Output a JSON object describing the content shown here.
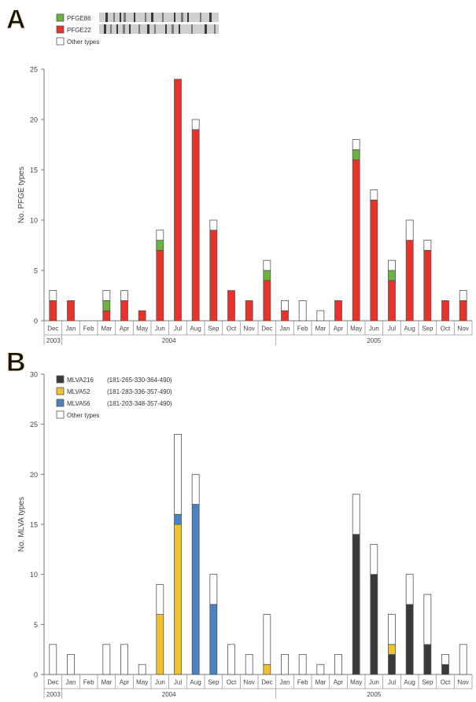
{
  "chart_data": [
    {
      "panel_label": "A",
      "type": "bar",
      "stacked": true,
      "ylabel": "No. PFGE types",
      "ylim": [
        0,
        25
      ],
      "yticks": [
        0,
        5,
        10,
        15,
        20,
        25
      ],
      "grid": false,
      "legend_position": "top-left",
      "categories": [
        "Dec",
        "Jan",
        "Feb",
        "Mar",
        "Apr",
        "May",
        "Jun",
        "Jul",
        "Aug",
        "Sep",
        "Oct",
        "Nov",
        "Dec",
        "Jan",
        "Feb",
        "Mar",
        "Apr",
        "May",
        "Jun",
        "Jul",
        "Aug",
        "Sep",
        "Oct",
        "Nov"
      ],
      "year_groups": [
        {
          "label": "2003",
          "start": 0,
          "end": 0
        },
        {
          "label": "2004",
          "start": 1,
          "end": 12
        },
        {
          "label": "2005",
          "start": 13,
          "end": 23
        }
      ],
      "series": [
        {
          "name": "PFGE22",
          "color": "#e8332a",
          "values": [
            2,
            2,
            0,
            1,
            2,
            1,
            7,
            24,
            19,
            9,
            3,
            2,
            4,
            1,
            0,
            0,
            2,
            16,
            12,
            4,
            8,
            7,
            2,
            2
          ]
        },
        {
          "name": "PFGE86",
          "color": "#6cb33f",
          "values": [
            0,
            0,
            0,
            1,
            0,
            0,
            1,
            0,
            0,
            0,
            0,
            0,
            1,
            0,
            0,
            0,
            0,
            1,
            0,
            1,
            0,
            0,
            0,
            0
          ]
        },
        {
          "name": "Other types",
          "color": "#ffffff",
          "values": [
            1,
            0,
            0,
            1,
            1,
            0,
            1,
            0,
            1,
            1,
            0,
            0,
            1,
            1,
            2,
            1,
            0,
            1,
            1,
            1,
            2,
            1,
            0,
            1
          ]
        }
      ]
    },
    {
      "panel_label": "B",
      "type": "bar",
      "stacked": true,
      "ylabel": "No. MLVA types",
      "ylim": [
        0,
        30
      ],
      "yticks": [
        0,
        5,
        10,
        15,
        20,
        25,
        30
      ],
      "grid": false,
      "legend_position": "top-left",
      "categories": [
        "Dec",
        "Jan",
        "Feb",
        "Mar",
        "Apr",
        "May",
        "Jun",
        "Jul",
        "Aug",
        "Sep",
        "Oct",
        "Nov",
        "Dec",
        "Jan",
        "Feb",
        "Mar",
        "Apr",
        "May",
        "Jun",
        "Jul",
        "Aug",
        "Sep",
        "Oct",
        "Nov"
      ],
      "year_groups": [
        {
          "label": "2003",
          "start": 0,
          "end": 0
        },
        {
          "label": "2004",
          "start": 1,
          "end": 12
        },
        {
          "label": "2005",
          "start": 13,
          "end": 23
        }
      ],
      "series": [
        {
          "name": "MLVA216",
          "legend_detail": "(181-265-330-364-490)",
          "color": "#3a3a3a",
          "values": [
            0,
            0,
            0,
            0,
            0,
            0,
            0,
            0,
            0,
            0,
            0,
            0,
            0,
            0,
            0,
            0,
            0,
            14,
            10,
            2,
            7,
            3,
            1,
            0
          ]
        },
        {
          "name": "MLVA52",
          "legend_detail": "(181-283-336-357-490)",
          "color": "#f2c12e",
          "values": [
            0,
            0,
            0,
            0,
            0,
            0,
            6,
            15,
            0,
            0,
            0,
            0,
            1,
            0,
            0,
            0,
            0,
            0,
            0,
            1,
            0,
            0,
            0,
            0
          ]
        },
        {
          "name": "MLVA56",
          "legend_detail": "(181-203-348-357-490)",
          "color": "#4a82c3",
          "values": [
            0,
            0,
            0,
            0,
            0,
            0,
            0,
            1,
            17,
            7,
            0,
            0,
            0,
            0,
            0,
            0,
            0,
            0,
            0,
            0,
            0,
            0,
            0,
            0
          ]
        },
        {
          "name": "Other types",
          "legend_detail": "",
          "color": "#ffffff",
          "values": [
            3,
            2,
            0,
            3,
            3,
            1,
            3,
            8,
            3,
            3,
            3,
            2,
            5,
            2,
            2,
            1,
            2,
            4,
            3,
            3,
            3,
            5,
            1,
            3
          ]
        }
      ]
    }
  ]
}
